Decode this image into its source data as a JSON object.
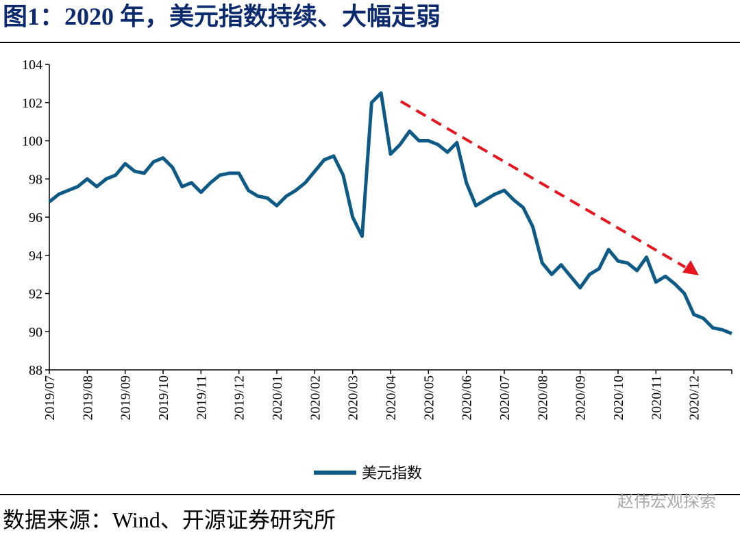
{
  "title": "图1：2020 年，美元指数持续、大幅走弱",
  "chart_data": {
    "type": "line",
    "categories": [
      "2019/07",
      null,
      null,
      null,
      "2019/08",
      null,
      null,
      null,
      "2019/09",
      null,
      null,
      null,
      "2019/10",
      null,
      null,
      null,
      "2019/11",
      null,
      null,
      null,
      "2019/12",
      null,
      null,
      null,
      "2020/01",
      null,
      null,
      null,
      "2020/02",
      null,
      null,
      null,
      "2020/03",
      null,
      null,
      null,
      "2020/04",
      null,
      null,
      null,
      "2020/05",
      null,
      null,
      null,
      "2020/06",
      null,
      null,
      null,
      "2020/07",
      null,
      null,
      null,
      "2020/08",
      null,
      null,
      null,
      "2020/09",
      null,
      null,
      null,
      "2020/10",
      null,
      null,
      null,
      "2020/11",
      null,
      null,
      null,
      "2020/12",
      null,
      null,
      null,
      null
    ],
    "series": [
      {
        "name": "美元指数",
        "color": "#0d5a87",
        "values": [
          96.8,
          97.2,
          97.4,
          97.6,
          98.0,
          97.6,
          98.0,
          98.2,
          98.8,
          98.4,
          98.3,
          98.9,
          99.1,
          98.6,
          97.6,
          97.8,
          97.3,
          97.8,
          98.2,
          98.3,
          98.3,
          97.4,
          97.1,
          97.0,
          96.6,
          97.1,
          97.4,
          97.8,
          98.4,
          99.0,
          99.2,
          98.2,
          96.0,
          95.0,
          102.0,
          102.5,
          99.3,
          99.8,
          100.5,
          100.0,
          100.0,
          99.8,
          99.4,
          99.9,
          97.8,
          96.6,
          96.9,
          97.2,
          97.4,
          96.9,
          96.5,
          95.5,
          93.6,
          93.0,
          93.5,
          92.9,
          92.3,
          93.0,
          93.3,
          94.3,
          93.7,
          93.6,
          93.2,
          93.9,
          92.6,
          92.9,
          92.5,
          92.0,
          90.9,
          90.7,
          90.2,
          90.1,
          89.9
        ]
      }
    ],
    "ylim": [
      88,
      104
    ],
    "yticks": [
      88,
      90,
      92,
      94,
      96,
      98,
      100,
      102,
      104
    ]
  },
  "source": "数据来源：Wind、开源证券研究所",
  "watermark": "赵伟宏观探索"
}
